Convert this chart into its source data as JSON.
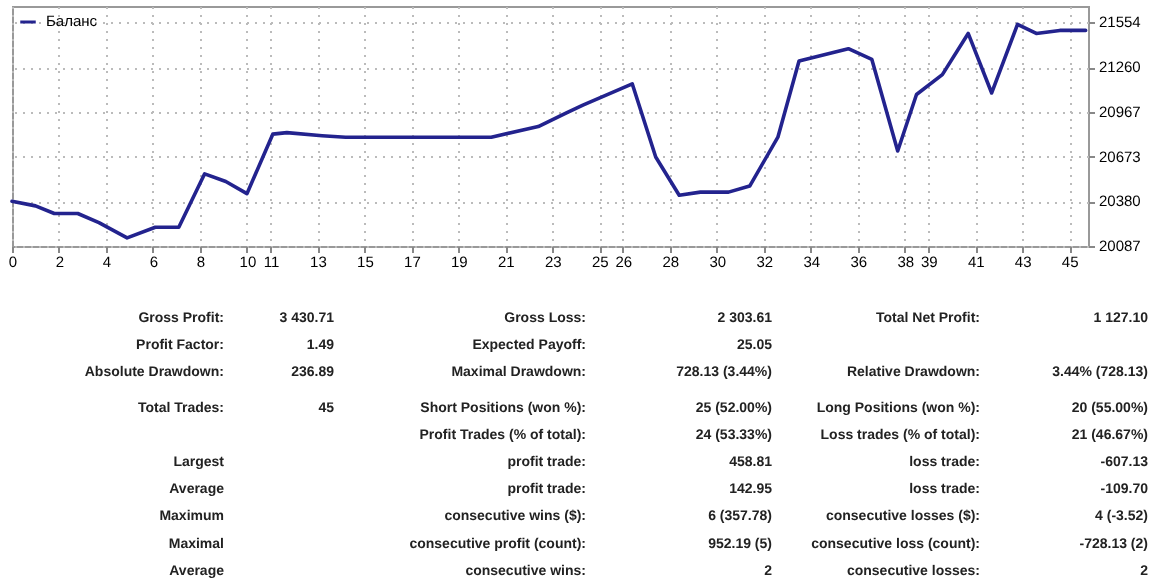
{
  "chart_data": [
    {
      "type": "line",
      "series": [
        {
          "name": "Баланс",
          "color": "#23238e",
          "x": [
            0,
            1.0,
            1.8,
            2.8,
            3.7,
            4.9,
            6.1,
            7.1,
            8.2,
            9.1,
            10.0,
            11.1,
            11.7,
            13.2,
            14.2,
            20.4,
            22.4,
            23.6,
            24.3,
            26.4,
            27.4,
            28.4,
            29.3,
            30.5,
            31.4,
            32.6,
            33.5,
            35.6,
            36.6,
            37.7,
            38.5,
            39.6,
            40.7,
            41.7,
            42.8,
            43.6,
            44.6,
            45.7
          ],
          "values": [
            20380,
            20350,
            20300,
            20300,
            20240,
            20140,
            20210,
            20210,
            20560,
            20510,
            20430,
            20820,
            20830,
            20810,
            20800,
            20800,
            20870,
            20960,
            21010,
            21150,
            20670,
            20420,
            20440,
            20440,
            20480,
            20800,
            21300,
            21380,
            21310,
            20710,
            21080,
            21210,
            21480,
            21090,
            21540,
            21480,
            21500,
            21500
          ]
        }
      ],
      "xlim": [
        0,
        45.8
      ],
      "xticks": [
        0,
        2,
        4,
        6,
        8,
        10,
        11,
        13,
        15,
        17,
        19,
        21,
        23,
        25,
        26,
        28,
        30,
        32,
        34,
        36,
        38,
        39,
        41,
        43,
        45
      ],
      "ylim": [
        20087,
        21660
      ],
      "yticks": [
        20087,
        20380,
        20673,
        20967,
        21260,
        21554
      ],
      "grid": true,
      "legend": "top left"
    },
    {
      "type": "other",
      "annotations": [
        "Gross Profit:",
        "3 430.71",
        "Gross Loss:",
        "2 303.61",
        "Total Net Profit:",
        "1 127.10",
        "Profit Factor:",
        "1.49",
        "Expected Payoff:",
        "25.05",
        null,
        null,
        "Absolute Drawdown:",
        "236.89",
        "Maximal Drawdown:",
        "728.13 (3.44%)",
        "Relative Drawdown:",
        "3.44% (728.13)",
        "Total Trades:",
        "45",
        "Short Positions (won %):",
        "25 (52.00%)",
        "Long Positions (won %):",
        "20 (55.00%)",
        null,
        null,
        "Profit Trades (% of total):",
        "24 (53.33%)",
        "Loss trades (% of total):",
        "21 (46.67%)",
        "Largest",
        null,
        "profit trade:",
        "458.81",
        "loss trade:",
        "-607.13",
        "Average",
        null,
        "profit trade:",
        "142.95",
        "loss trade:",
        "-109.70",
        "Maximum",
        null,
        "consecutive wins ($):",
        "6 (357.78)",
        "consecutive losses ($):",
        "4 (-3.52)",
        "Maximal",
        null,
        "consecutive profit (count):",
        "952.19 (5)",
        "consecutive loss (count):",
        "-728.13 (2)",
        "Average",
        null,
        "consecutive wins:",
        "2",
        "consecutive losses:",
        "2"
      ]
    }
  ]
}
